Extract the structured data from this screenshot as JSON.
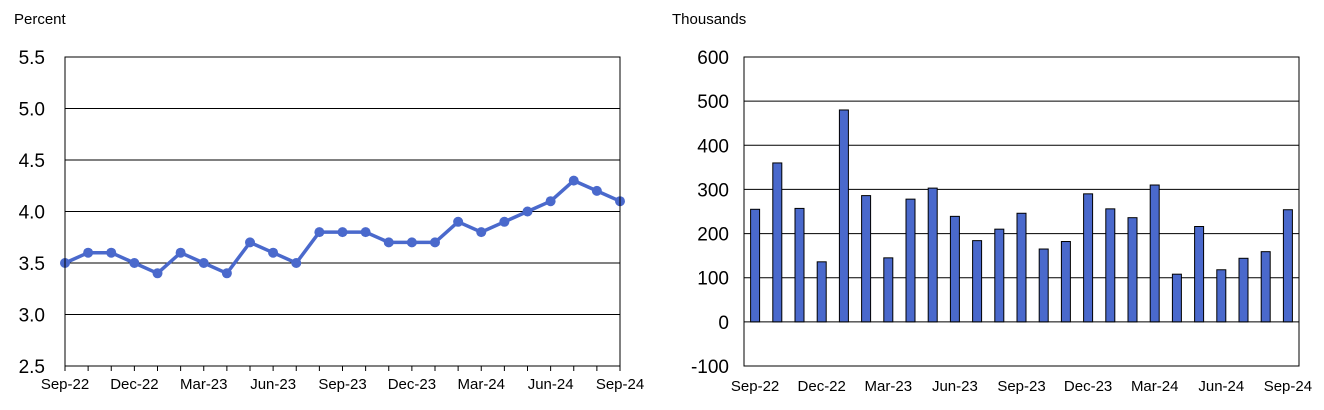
{
  "chart_data": [
    {
      "type": "line",
      "ylabel": "Percent",
      "ylim": [
        2.5,
        5.5
      ],
      "yticks": [
        2.5,
        3.0,
        3.5,
        4.0,
        4.5,
        5.0,
        5.5
      ],
      "ytick_labels": [
        "2.5",
        "3.0",
        "3.5",
        "4.0",
        "4.5",
        "5.0",
        "5.5"
      ],
      "xtick_labels": [
        "Sep-22",
        "Dec-22",
        "Mar-23",
        "Jun-23",
        "Sep-23",
        "Dec-23",
        "Mar-24",
        "Jun-24",
        "Sep-24"
      ],
      "x": [
        "Sep-22",
        "Oct-22",
        "Nov-22",
        "Dec-22",
        "Jan-23",
        "Feb-23",
        "Mar-23",
        "Apr-23",
        "May-23",
        "Jun-23",
        "Jul-23",
        "Aug-23",
        "Sep-23",
        "Oct-23",
        "Nov-23",
        "Dec-23",
        "Jan-24",
        "Feb-24",
        "Mar-24",
        "Apr-24",
        "May-24",
        "Jun-24",
        "Jul-24",
        "Aug-24",
        "Sep-24"
      ],
      "series": [
        {
          "values": [
            3.5,
            3.6,
            3.6,
            3.5,
            3.4,
            3.6,
            3.5,
            3.4,
            3.7,
            3.6,
            3.5,
            3.8,
            3.8,
            3.8,
            3.7,
            3.7,
            3.7,
            3.9,
            3.8,
            3.9,
            4.0,
            4.1,
            4.3,
            4.2,
            4.1
          ]
        }
      ],
      "grid": true,
      "color": "#4a69cc"
    },
    {
      "type": "bar",
      "ylabel": "Thousands",
      "ylim": [
        -100,
        600
      ],
      "yticks": [
        -100,
        0,
        100,
        200,
        300,
        400,
        500,
        600
      ],
      "ytick_labels": [
        "-100",
        "0",
        "100",
        "200",
        "300",
        "400",
        "500",
        "600"
      ],
      "xtick_labels": [
        "Sep-22",
        "Dec-22",
        "Mar-23",
        "Jun-23",
        "Sep-23",
        "Dec-23",
        "Mar-24",
        "Jun-24",
        "Sep-24"
      ],
      "categories": [
        "Sep-22",
        "Oct-22",
        "Nov-22",
        "Dec-22",
        "Jan-23",
        "Feb-23",
        "Mar-23",
        "Apr-23",
        "May-23",
        "Jun-23",
        "Jul-23",
        "Aug-23",
        "Sep-23",
        "Oct-23",
        "Nov-23",
        "Dec-23",
        "Jan-24",
        "Feb-24",
        "Mar-24",
        "Apr-24",
        "May-24",
        "Jun-24",
        "Jul-24",
        "Aug-24",
        "Sep-24"
      ],
      "values": [
        255,
        360,
        257,
        136,
        480,
        286,
        145,
        278,
        303,
        239,
        184,
        210,
        246,
        165,
        182,
        290,
        256,
        236,
        310,
        108,
        216,
        118,
        144,
        159,
        254
      ],
      "grid": true,
      "color": "#4a69cc"
    }
  ]
}
